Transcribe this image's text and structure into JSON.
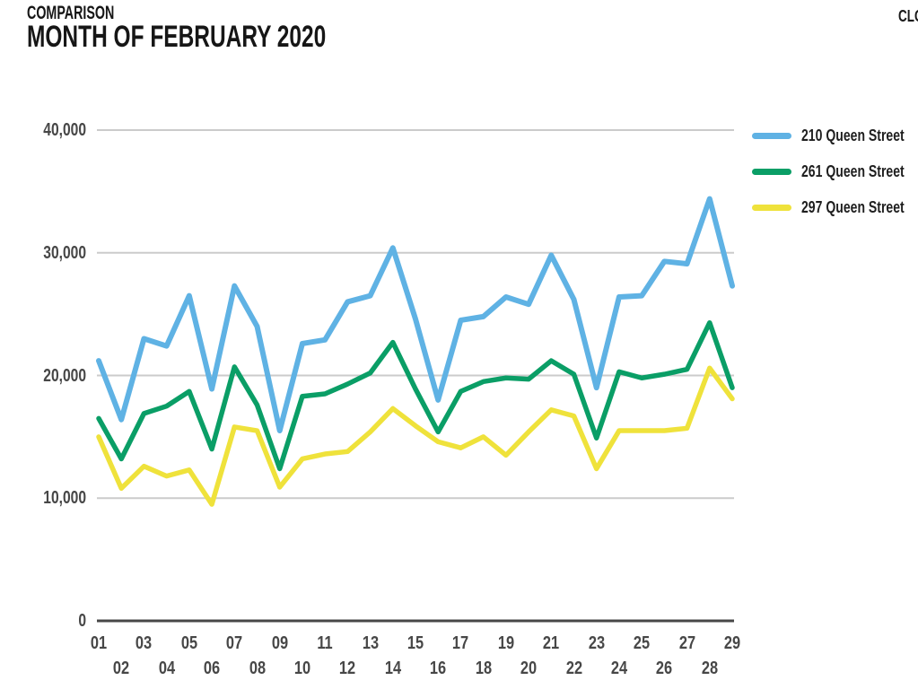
{
  "header": {
    "eyebrow": "COMPARISON",
    "title": "MONTH OF FEBRUARY 2020",
    "top_right_label": "CLO"
  },
  "chart_data": {
    "type": "line",
    "title": "COMPARISON - MONTH OF FEBRUARY 2020",
    "xlabel": "",
    "ylabel": "",
    "x": [
      "01",
      "02",
      "03",
      "04",
      "05",
      "06",
      "07",
      "08",
      "09",
      "10",
      "11",
      "12",
      "13",
      "14",
      "15",
      "16",
      "17",
      "18",
      "19",
      "20",
      "21",
      "22",
      "23",
      "24",
      "25",
      "26",
      "27",
      "28",
      "29"
    ],
    "series": [
      {
        "name": "210 Queen Street",
        "color": "#5FB2E4",
        "values": [
          21200,
          16400,
          23000,
          22400,
          26500,
          18900,
          27300,
          24000,
          15500,
          22600,
          22900,
          26000,
          26500,
          30400,
          24600,
          18000,
          24500,
          24800,
          26400,
          25800,
          29800,
          26200,
          19000,
          26400,
          26500,
          29300,
          29100,
          34400,
          27300
        ]
      },
      {
        "name": "261 Queen Street",
        "color": "#0A9E66",
        "values": [
          16500,
          13200,
          16900,
          17500,
          18700,
          14000,
          20700,
          17600,
          12400,
          18300,
          18500,
          19300,
          20200,
          22700,
          18900,
          15400,
          18700,
          19500,
          19800,
          19700,
          21200,
          20100,
          14900,
          20300,
          19800,
          20100,
          20500,
          24300,
          19000
        ]
      },
      {
        "name": "297 Queen Street",
        "color": "#EFE23B",
        "values": [
          15000,
          10800,
          12600,
          11800,
          12300,
          9500,
          15800,
          15500,
          10900,
          13200,
          13600,
          13800,
          15400,
          17300,
          15900,
          14600,
          14100,
          15000,
          13500,
          15400,
          17200,
          16700,
          12400,
          15500,
          15500,
          15500,
          15700,
          20600,
          18100
        ]
      }
    ],
    "ylim": [
      0,
      40000
    ],
    "yticks": [
      0,
      10000,
      20000,
      30000,
      40000
    ],
    "ytick_labels": [
      "0",
      "10,000",
      "20,000",
      "30,000",
      "40,000"
    ],
    "grid": "horizontal",
    "legend_position": "right",
    "colors": {
      "gridline": "#cbcbcb",
      "axis": "#474747",
      "tick_text": "#474747"
    }
  }
}
